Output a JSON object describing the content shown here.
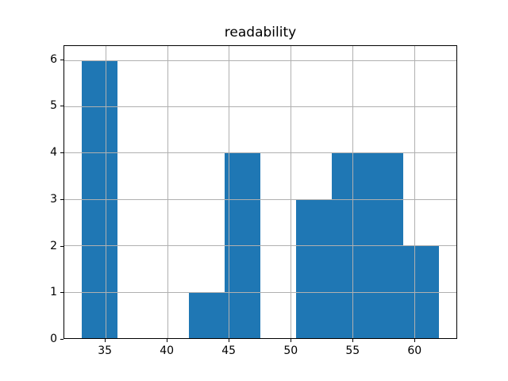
{
  "figure": {
    "background": "#ffffff"
  },
  "chart_data": {
    "type": "bar",
    "subtype": "histogram",
    "title": "readability",
    "xlabel": "",
    "ylabel": "",
    "bin_edges": [
      33.1,
      35.99,
      38.88,
      41.77,
      44.66,
      47.55,
      50.44,
      53.33,
      56.22,
      59.11,
      62.0
    ],
    "counts": [
      6,
      0,
      0,
      1,
      4,
      0,
      3,
      4,
      4,
      2
    ],
    "xticks": [
      35,
      40,
      45,
      50,
      55,
      60
    ],
    "yticks": [
      0,
      1,
      2,
      3,
      4,
      5,
      6
    ],
    "xlim": [
      31.66,
      63.44
    ],
    "ylim": [
      0,
      6.3
    ],
    "grid": true,
    "grid_above_bars": true,
    "legend": false,
    "colors": {
      "bar": "#1f77b4",
      "grid": "#b0b0b0",
      "spine": "#000000",
      "text": "#000000",
      "background": "#ffffff"
    }
  }
}
